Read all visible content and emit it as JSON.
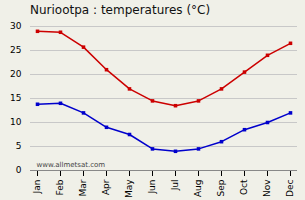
{
  "chart_data": {
    "type": "line",
    "title": "Nuriootpa : temperatures (°C)",
    "categories": [
      "Jan",
      "Feb",
      "Mar",
      "Apr",
      "May",
      "Jun",
      "Jul",
      "Aug",
      "Sep",
      "Oct",
      "Nov",
      "Dec"
    ],
    "series": [
      {
        "color": "#cc0000",
        "marker": "square",
        "values": [
          29.0,
          28.8,
          25.7,
          21.0,
          17.0,
          14.5,
          13.5,
          14.5,
          17.0,
          20.5,
          24.0,
          26.5
        ]
      },
      {
        "color": "#0000cc",
        "marker": "square",
        "values": [
          13.8,
          14.0,
          12.0,
          9.0,
          7.5,
          4.5,
          4.0,
          4.5,
          6.0,
          8.5,
          10.0,
          12.0
        ]
      }
    ],
    "ylim": [
      0,
      30
    ],
    "yticks": [
      0,
      5,
      10,
      15,
      20,
      25,
      30
    ],
    "grid": true,
    "annotations": [
      "www.allmetsat.com"
    ]
  }
}
